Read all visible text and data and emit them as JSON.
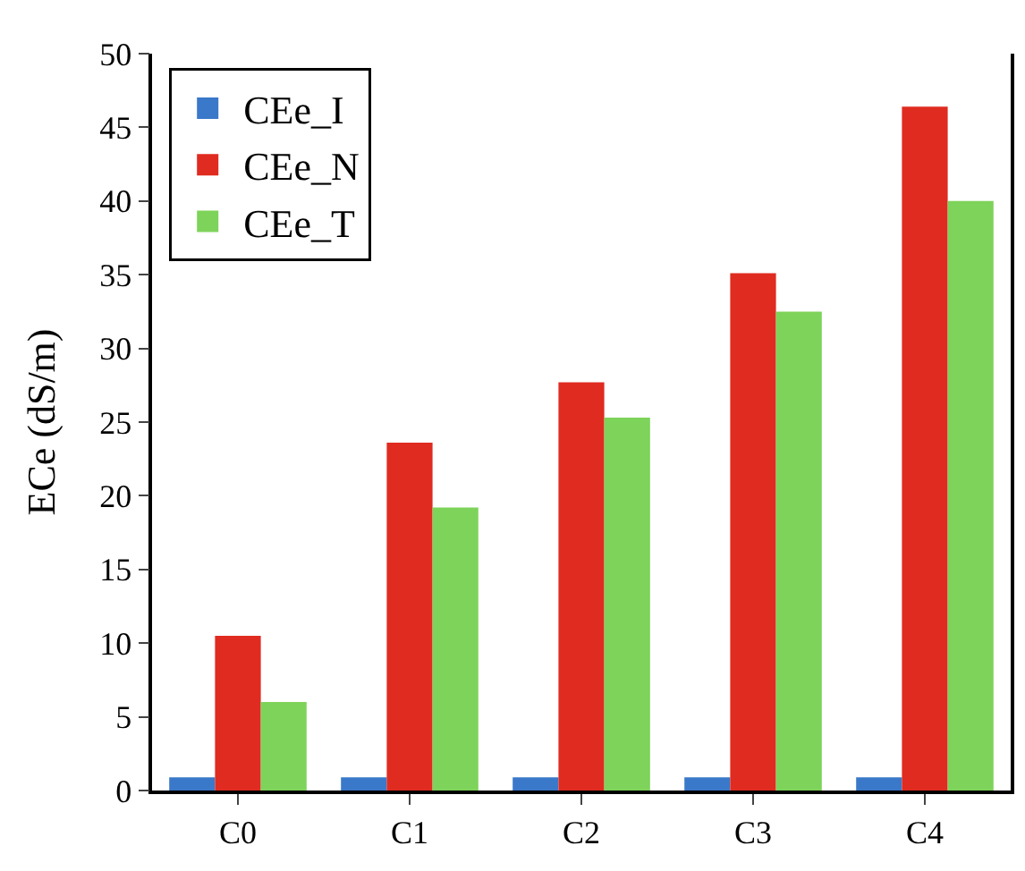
{
  "chart_data": {
    "type": "bar",
    "ylabel": "ECe (dS/m)",
    "categories": [
      "C0",
      "C1",
      "C2",
      "C3",
      "C4"
    ],
    "series": [
      {
        "name": "CEe_I",
        "color": "#3a78c9",
        "values": [
          0.9,
          0.9,
          0.9,
          0.9,
          0.9
        ]
      },
      {
        "name": "CEe_N",
        "color": "#e02b20",
        "values": [
          10.5,
          23.6,
          27.7,
          35.1,
          46.4
        ]
      },
      {
        "name": "CEe_T",
        "color": "#7ed35a",
        "values": [
          6.0,
          19.2,
          25.3,
          32.5,
          40.0
        ]
      }
    ],
    "ylim": [
      0,
      50
    ],
    "yticks": [
      0,
      5,
      10,
      15,
      20,
      25,
      30,
      35,
      40,
      45,
      50
    ],
    "grid": false,
    "legend": "top left"
  }
}
